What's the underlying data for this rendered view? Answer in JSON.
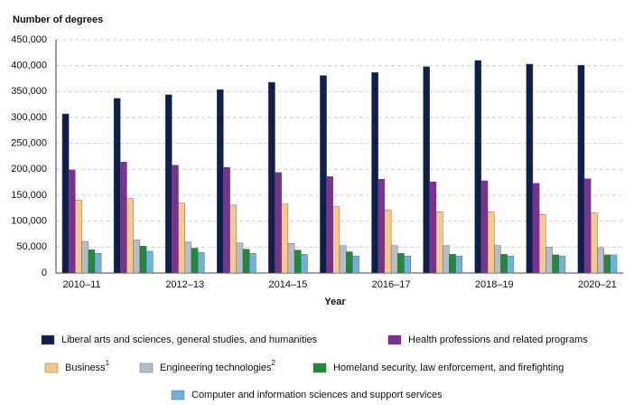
{
  "chart_data": {
    "type": "bar",
    "y_axis_title": "Number of degrees",
    "x_axis_title": "Year",
    "categories": [
      "2010–11",
      null,
      "2012–13",
      null,
      "2014–15",
      null,
      "2016–17",
      null,
      "2018–19",
      null,
      "2020–21"
    ],
    "series": [
      {
        "name": "Liberal arts and sciences, general studies, and humanities",
        "color": "#0e1f4d",
        "values": [
          307000,
          337000,
          344000,
          354000,
          368000,
          381000,
          387000,
          398000,
          410000,
          403000,
          401000
        ]
      },
      {
        "name": "Health professions and related programs",
        "color": "#7a3192",
        "values": [
          199000,
          214000,
          208000,
          204000,
          194000,
          186000,
          181000,
          176000,
          178000,
          173000,
          182000
        ]
      },
      {
        "name": "Business",
        "footnote": "1",
        "color": "#f8c888",
        "values": [
          141000,
          144000,
          135000,
          131000,
          133000,
          128000,
          122000,
          118000,
          118000,
          113000,
          116000
        ]
      },
      {
        "name": "Engineering technologies",
        "footnote": "2",
        "color": "#b3bec6",
        "values": [
          61000,
          64000,
          60000,
          58000,
          57000,
          53000,
          53000,
          53000,
          53000,
          50000,
          49000
        ]
      },
      {
        "name": "Homeland security, law enforcement, and firefighting",
        "color": "#1f8a3b",
        "values": [
          45000,
          52000,
          48000,
          46000,
          44000,
          41000,
          38000,
          36000,
          36000,
          35000,
          35000
        ]
      },
      {
        "name": "Computer and information sciences and support services",
        "color": "#6fb1dd",
        "values": [
          38000,
          42000,
          40000,
          38000,
          36000,
          33000,
          33000,
          33000,
          33000,
          33000,
          35000
        ]
      }
    ],
    "ylim": [
      0,
      450000
    ],
    "yticks": [
      0,
      {
        "value": 50000,
        "label": "50,000"
      },
      {
        "value": 100000,
        "label": "100,000"
      },
      {
        "value": 150000,
        "label": "150,000"
      },
      {
        "value": 200000,
        "label": "200,000"
      },
      {
        "value": 250000,
        "label": "250,000"
      },
      {
        "value": 300000,
        "label": "300,000"
      },
      {
        "value": 350000,
        "label": "350,000"
      },
      {
        "value": 400000,
        "label": "400,000"
      },
      {
        "value": 450000,
        "label": "450,000"
      }
    ],
    "grid": true
  }
}
